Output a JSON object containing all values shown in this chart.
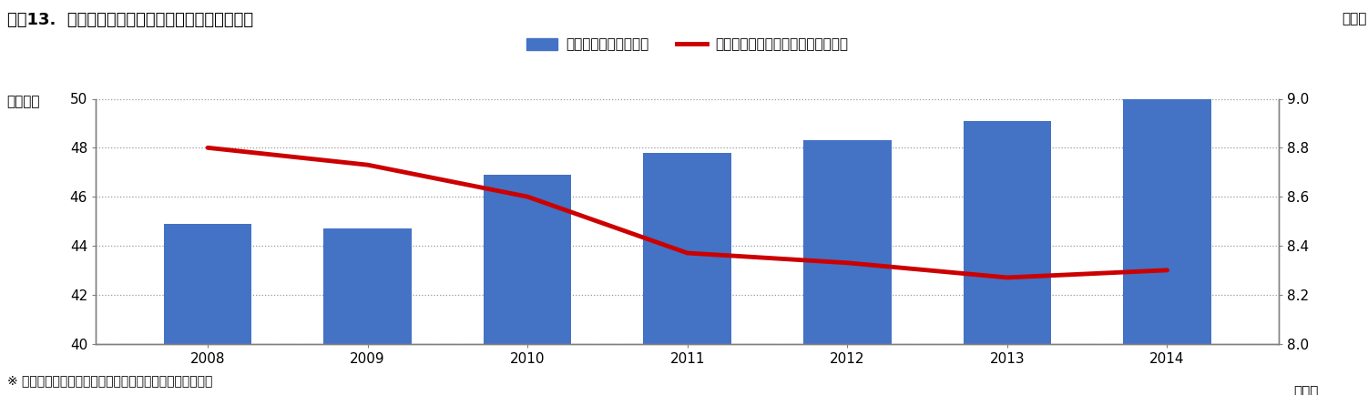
{
  "title": "図表13.  転院搬送件数と救急搬送全体に占める割合",
  "ylabel_left": "（万件）",
  "ylabel_right": "（％）",
  "xlabel_suffix": "（年）",
  "years": [
    2008,
    2009,
    2010,
    2011,
    2012,
    2013,
    2014
  ],
  "bar_values": [
    44.9,
    44.7,
    46.9,
    47.8,
    48.3,
    49.1,
    50.0
  ],
  "line_values": [
    8.8,
    8.73,
    8.6,
    8.37,
    8.33,
    8.27,
    8.3
  ],
  "bar_color": "#4472C4",
  "line_color": "#CC0000",
  "bar_legend": "転院搬送件数（左軸）",
  "line_legend": "救急搬送全体に占める割合（右軸）",
  "ylim_left": [
    40,
    50
  ],
  "ylim_right": [
    8.0,
    9.0
  ],
  "yticks_left": [
    40,
    42,
    44,
    46,
    48,
    50
  ],
  "yticks_right": [
    8.0,
    8.2,
    8.4,
    8.6,
    8.8,
    9.0
  ],
  "footnote": "※ 「救急・救助の現況」（総務省消防庁）より、筆者作成",
  "bg_color": "#FFFFFF",
  "grid_color": "#999999",
  "border_color": "#808080",
  "title_fontsize": 13,
  "axis_fontsize": 11,
  "tick_fontsize": 11,
  "legend_fontsize": 11,
  "footnote_fontsize": 10
}
